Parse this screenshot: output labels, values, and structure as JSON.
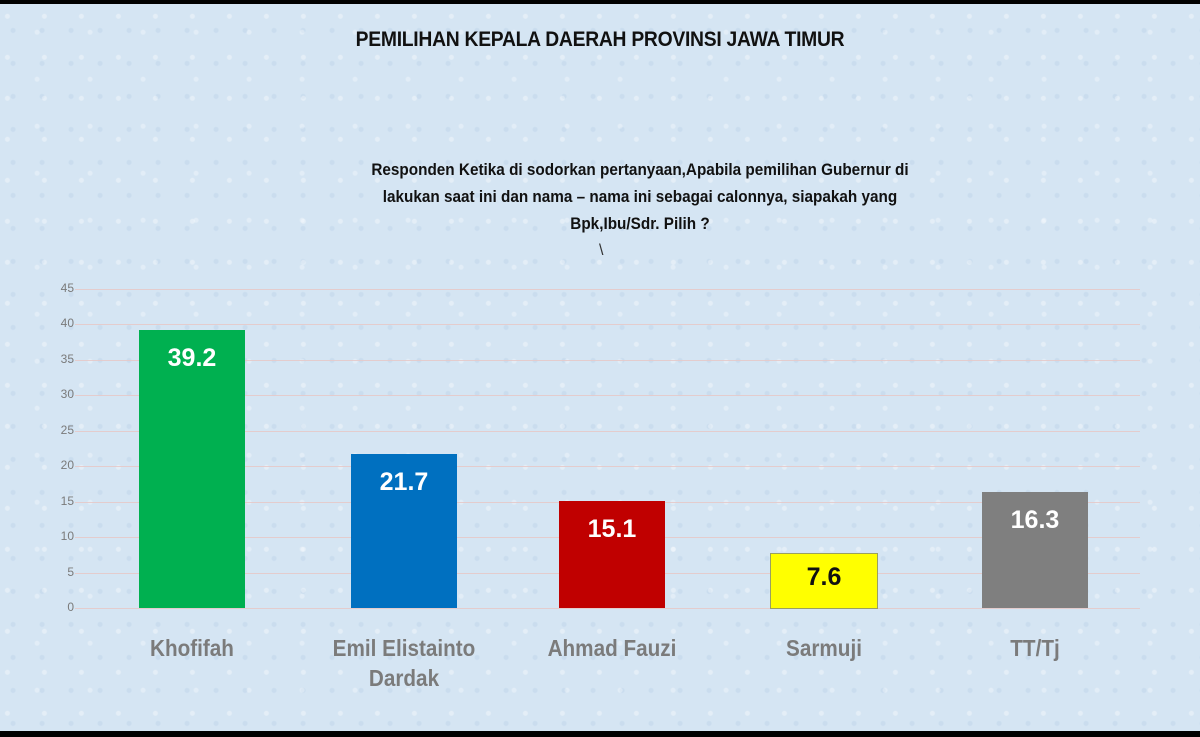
{
  "header": {
    "title": "PEMILIHAN KEPALA DAERAH PROVINSI JAWA TIMUR",
    "question_lines": [
      "Responden Ketika di sodorkan pertanyaan,Apabila pemilihan Gubernur  di",
      "lakukan saat ini dan nama – nama ini sebagai calonnya, siapakah  yang",
      "Bpk,Ibu/Sdr. Pilih ?"
    ],
    "stray_mark": "\\"
  },
  "chart_data": {
    "type": "bar",
    "title": "PEMILIHAN KEPALA DAERAH PROVINSI JAWA TIMUR",
    "subtitle": "Responden Ketika di sodorkan pertanyaan,Apabila pemilihan Gubernur di lakukan saat ini dan nama – nama ini sebagai calonnya, siapakah yang Bpk,Ibu/Sdr. Pilih ?",
    "categories": [
      "Khofifah",
      "Emil Elistainto Dardak",
      "Ahmad Fauzi",
      "Sarmuji",
      "TT/Tj"
    ],
    "values": [
      39.2,
      21.7,
      15.1,
      7.6,
      16.3
    ],
    "value_labels": [
      "39.2",
      "21.7",
      "15.1",
      "7.6",
      "16.3"
    ],
    "colors": [
      "#00b050",
      "#0070c0",
      "#c00000",
      "#ffff00",
      "#7f7f7f"
    ],
    "label_colors": [
      "#ffffff",
      "#ffffff",
      "#ffffff",
      "#111111",
      "#ffffff"
    ],
    "xlabel": "",
    "ylabel": "",
    "ylim": [
      0,
      45
    ],
    "yticks": [
      "0",
      "5",
      "10",
      "15",
      "20",
      "25",
      "30",
      "35",
      "40",
      "45"
    ],
    "grid": true,
    "legend": "none"
  }
}
